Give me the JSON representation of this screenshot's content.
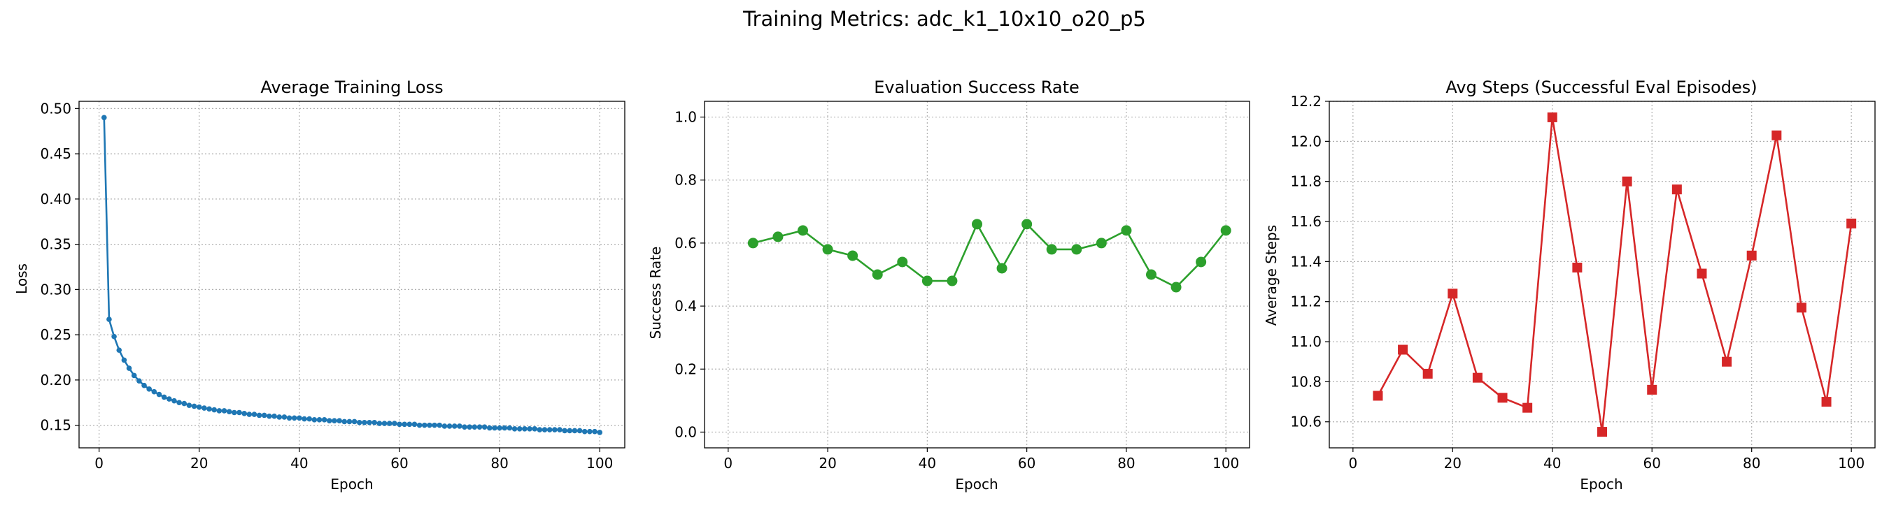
{
  "figure": {
    "suptitle": "Training Metrics: adc_k1_10x10_o20_p5"
  },
  "chart_data": [
    {
      "type": "line",
      "title": "Average Training Loss",
      "xlabel": "Epoch",
      "ylabel": "Loss",
      "xlim": [
        -4.0,
        105.0
      ],
      "ylim": [
        0.125,
        0.508
      ],
      "xticks": [
        0,
        20,
        40,
        60,
        80,
        100
      ],
      "yticks": [
        0.15,
        0.2,
        0.25,
        0.3,
        0.35,
        0.4,
        0.45,
        0.5
      ],
      "ytick_labels": [
        "0.15",
        "0.20",
        "0.25",
        "0.30",
        "0.35",
        "0.40",
        "0.45",
        "0.50"
      ],
      "grid": true,
      "marker": "dot",
      "color": "#1f77b4",
      "series": [
        {
          "x": [
            1,
            2,
            3,
            4,
            5,
            6,
            7,
            8,
            9,
            10,
            11,
            12,
            13,
            14,
            15,
            16,
            17,
            18,
            19,
            20,
            21,
            22,
            23,
            24,
            25,
            26,
            27,
            28,
            29,
            30,
            31,
            32,
            33,
            34,
            35,
            36,
            37,
            38,
            39,
            40,
            41,
            42,
            43,
            44,
            45,
            46,
            47,
            48,
            49,
            50,
            51,
            52,
            53,
            54,
            55,
            56,
            57,
            58,
            59,
            60,
            61,
            62,
            63,
            64,
            65,
            66,
            67,
            68,
            69,
            70,
            71,
            72,
            73,
            74,
            75,
            76,
            77,
            78,
            79,
            80,
            81,
            82,
            83,
            84,
            85,
            86,
            87,
            88,
            89,
            90,
            91,
            92,
            93,
            94,
            95,
            96,
            97,
            98,
            99,
            100
          ],
          "y": [
            0.49,
            0.267,
            0.248,
            0.233,
            0.222,
            0.213,
            0.205,
            0.199,
            0.194,
            0.19,
            0.187,
            0.184,
            0.181,
            0.179,
            0.177,
            0.175,
            0.174,
            0.172,
            0.171,
            0.17,
            0.169,
            0.168,
            0.167,
            0.166,
            0.166,
            0.165,
            0.164,
            0.164,
            0.163,
            0.162,
            0.162,
            0.161,
            0.161,
            0.16,
            0.16,
            0.159,
            0.159,
            0.158,
            0.158,
            0.158,
            0.157,
            0.157,
            0.156,
            0.156,
            0.156,
            0.155,
            0.155,
            0.155,
            0.154,
            0.154,
            0.154,
            0.153,
            0.153,
            0.153,
            0.153,
            0.152,
            0.152,
            0.152,
            0.152,
            0.151,
            0.151,
            0.151,
            0.151,
            0.15,
            0.15,
            0.15,
            0.15,
            0.15,
            0.149,
            0.149,
            0.149,
            0.149,
            0.148,
            0.148,
            0.148,
            0.148,
            0.148,
            0.147,
            0.147,
            0.147,
            0.147,
            0.147,
            0.146,
            0.146,
            0.146,
            0.146,
            0.146,
            0.145,
            0.145,
            0.145,
            0.145,
            0.145,
            0.144,
            0.144,
            0.144,
            0.144,
            0.143,
            0.143,
            0.143,
            0.142
          ]
        }
      ]
    },
    {
      "type": "line",
      "title": "Evaluation Success Rate",
      "xlabel": "Epoch",
      "ylabel": "Success Rate",
      "xlim": [
        -4.75,
        104.75
      ],
      "ylim": [
        -0.05,
        1.05
      ],
      "xticks": [
        0,
        20,
        40,
        60,
        80,
        100
      ],
      "yticks": [
        0.0,
        0.2,
        0.4,
        0.6,
        0.8,
        1.0
      ],
      "ytick_labels": [
        "0.0",
        "0.2",
        "0.4",
        "0.6",
        "0.8",
        "1.0"
      ],
      "grid": true,
      "marker": "circle",
      "color": "#2ca02c",
      "series": [
        {
          "x": [
            5,
            10,
            15,
            20,
            25,
            30,
            35,
            40,
            45,
            50,
            55,
            60,
            65,
            70,
            75,
            80,
            85,
            90,
            95,
            100
          ],
          "y": [
            0.6,
            0.62,
            0.64,
            0.58,
            0.56,
            0.5,
            0.54,
            0.48,
            0.48,
            0.66,
            0.52,
            0.66,
            0.58,
            0.58,
            0.6,
            0.64,
            0.5,
            0.46,
            0.54,
            0.64
          ]
        }
      ]
    },
    {
      "type": "line",
      "title": "Avg Steps (Successful Eval Episodes)",
      "xlabel": "Epoch",
      "ylabel": "Average Steps",
      "xlim": [
        -4.75,
        104.75
      ],
      "ylim": [
        10.47,
        12.2
      ],
      "xticks": [
        0,
        20,
        40,
        60,
        80,
        100
      ],
      "yticks": [
        10.6,
        10.8,
        11.0,
        11.2,
        11.4,
        11.6,
        11.8,
        12.0,
        12.2
      ],
      "ytick_labels": [
        "10.6",
        "10.8",
        "11.0",
        "11.2",
        "11.4",
        "11.6",
        "11.8",
        "12.0",
        "12.2"
      ],
      "grid": true,
      "marker": "square",
      "color": "#d62728",
      "series": [
        {
          "x": [
            5,
            10,
            15,
            20,
            25,
            30,
            35,
            40,
            45,
            50,
            55,
            60,
            65,
            70,
            75,
            80,
            85,
            90,
            95,
            100
          ],
          "y": [
            10.73,
            10.96,
            10.84,
            11.24,
            10.82,
            10.72,
            10.67,
            12.12,
            11.37,
            10.55,
            11.8,
            10.76,
            11.76,
            11.34,
            10.9,
            11.43,
            12.03,
            11.17,
            10.7,
            11.59
          ]
        }
      ]
    }
  ]
}
